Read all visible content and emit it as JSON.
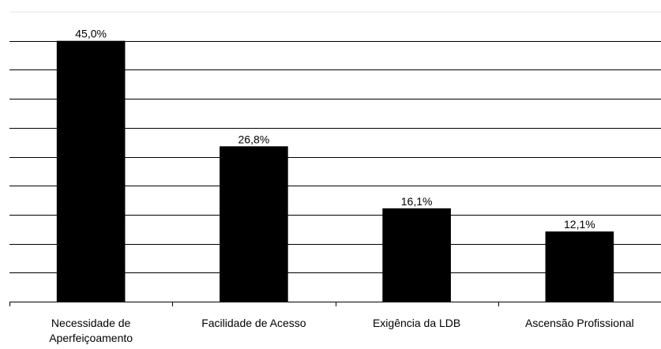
{
  "chart_data": {
    "type": "bar",
    "categories": [
      "Necessidade de Aperfeiçoamento",
      "Facilidade de Acesso",
      "Exigência da LDB",
      "Ascensão Profissional"
    ],
    "values": [
      45.0,
      26.8,
      16.1,
      12.1
    ],
    "value_labels": [
      "45,0%",
      "26,8%",
      "16,1%",
      "12,1%"
    ],
    "color": "#000000",
    "ylim": [
      0,
      50
    ],
    "yticks": [
      0,
      5,
      10,
      15,
      20,
      25,
      30,
      35,
      40,
      45
    ],
    "grid": true
  }
}
